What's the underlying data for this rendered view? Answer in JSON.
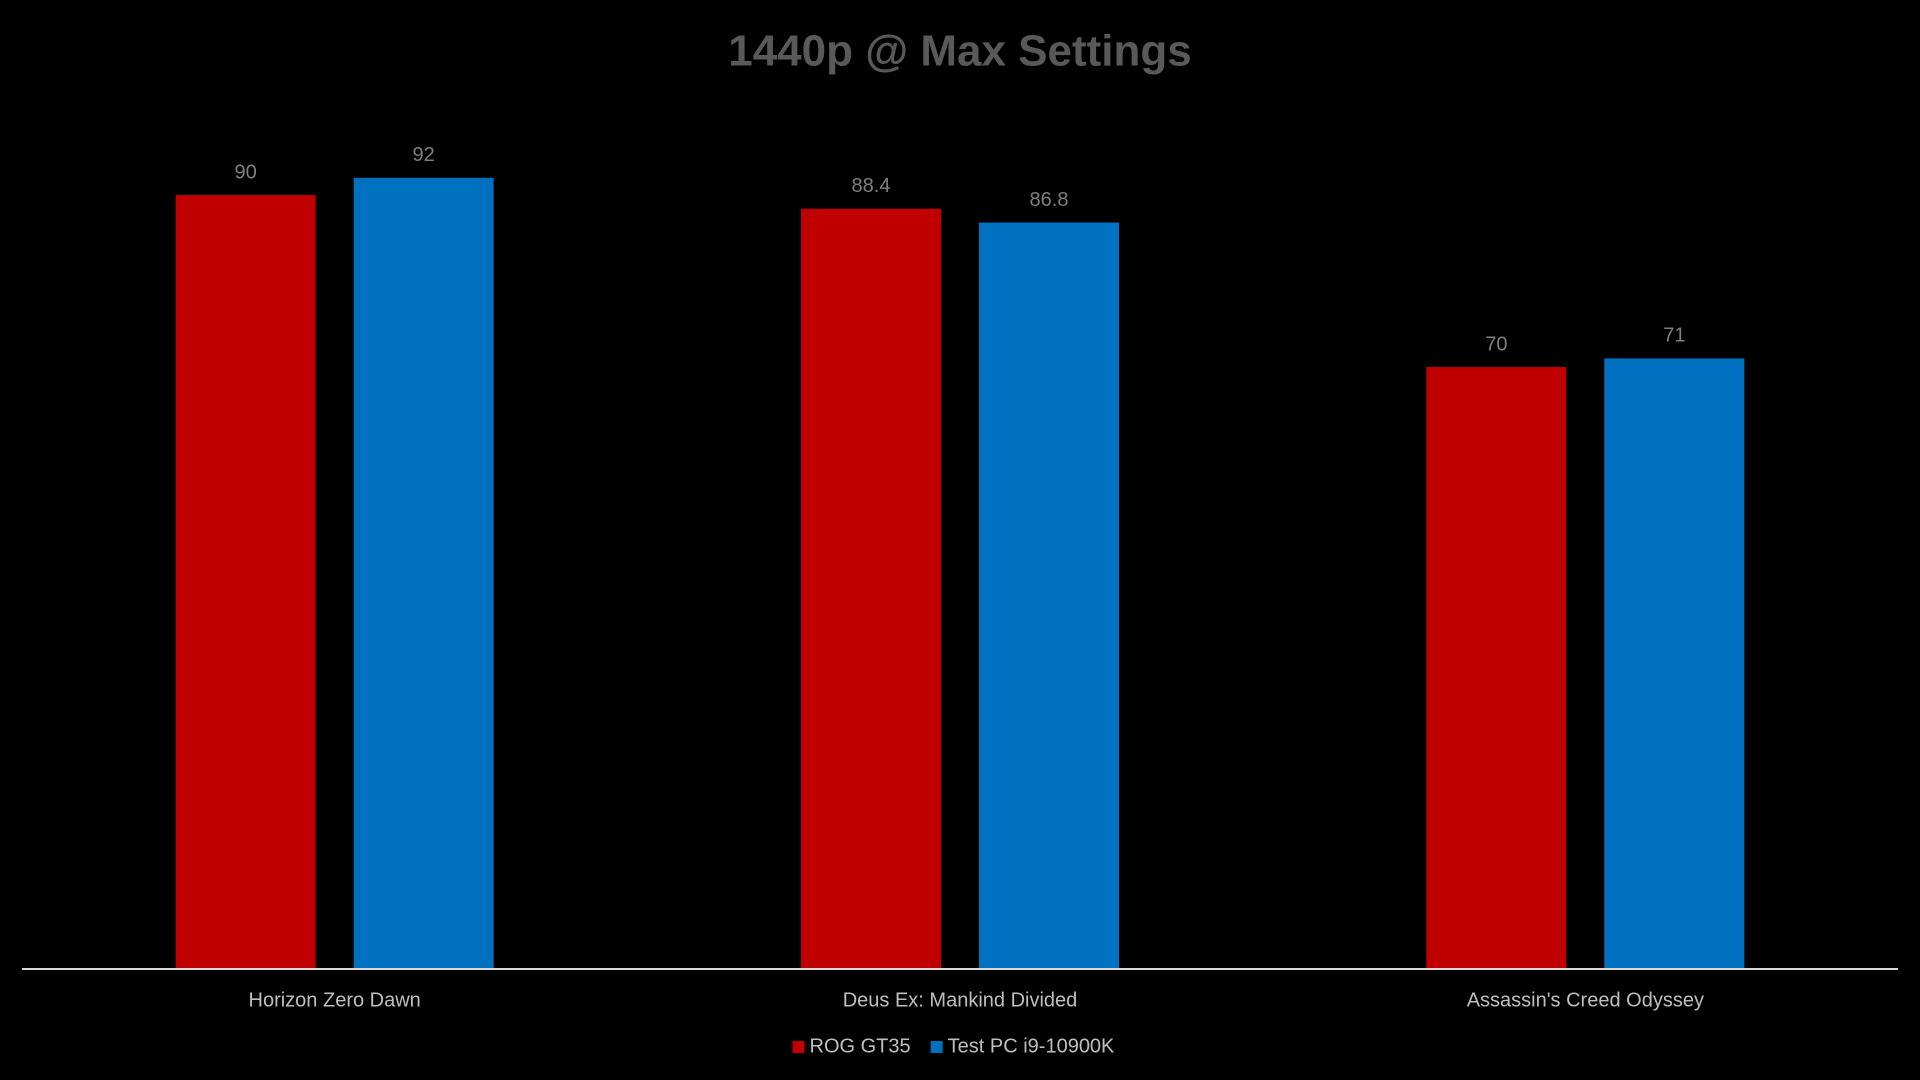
{
  "chart_data": {
    "type": "bar",
    "title": "1440p @ Max Settings",
    "categories": [
      "Horizon Zero Dawn",
      "Deus Ex: Mankind Divided",
      "Assassin's Creed Odyssey"
    ],
    "series": [
      {
        "name": "ROG GT35",
        "color": "#c00000",
        "values": [
          90,
          88.4,
          70
        ]
      },
      {
        "name": "Test PC i9-10900K",
        "color": "#0070c0",
        "values": [
          92,
          86.8,
          71
        ]
      }
    ],
    "ylim": [
      0,
      100
    ],
    "legend": "bottom"
  }
}
